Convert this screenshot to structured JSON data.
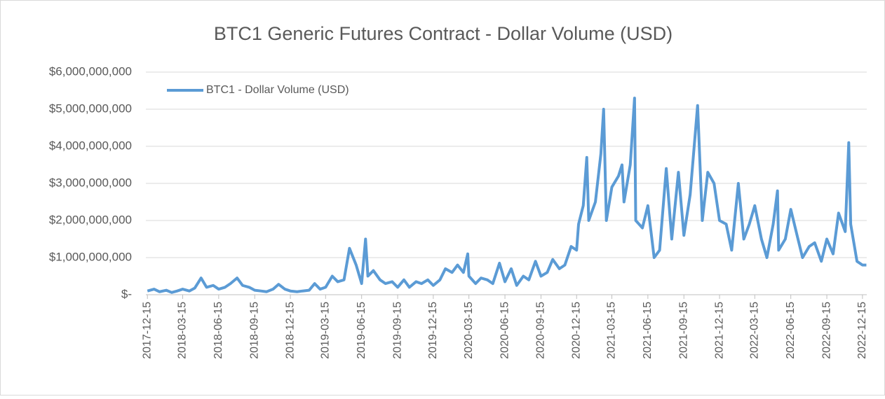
{
  "chart_data": {
    "type": "line",
    "title": "BTC1 Generic Futures Contract - Dollar Volume (USD)",
    "legend": "upper left",
    "grid": true,
    "xlim": [
      "2017-12-11",
      "2022-12-26"
    ],
    "xticks": [
      "2017-12-15",
      "2018-03-15",
      "2018-06-15",
      "2018-09-15",
      "2018-12-15",
      "2019-03-15",
      "2019-06-15",
      "2019-09-15",
      "2019-12-15",
      "2020-03-15",
      "2020-06-15",
      "2020-09-15",
      "2020-12-15",
      "2021-03-15",
      "2021-06-15",
      "2021-09-15",
      "2021-12-15",
      "2022-03-15",
      "2022-06-15",
      "2022-09-15",
      "2022-12-15"
    ],
    "ylim": [
      0,
      6000000000
    ],
    "yticks": [
      {
        "value": 0,
        "label": "$-"
      },
      {
        "value": 1000000000,
        "label": "$1,000,000,000"
      },
      {
        "value": 2000000000,
        "label": "$2,000,000,000"
      },
      {
        "value": 3000000000,
        "label": "$3,000,000,000"
      },
      {
        "value": 4000000000,
        "label": "$4,000,000,000"
      },
      {
        "value": 5000000000,
        "label": "$5,000,000,000"
      },
      {
        "value": 6000000000,
        "label": "$6,000,000,000"
      }
    ],
    "x": [
      "2017-12-15",
      "2018-01-01",
      "2018-01-15",
      "2018-02-01",
      "2018-02-15",
      "2018-03-01",
      "2018-03-15",
      "2018-04-01",
      "2018-04-15",
      "2018-05-01",
      "2018-05-15",
      "2018-06-01",
      "2018-06-15",
      "2018-07-01",
      "2018-07-15",
      "2018-08-01",
      "2018-08-15",
      "2018-09-01",
      "2018-09-15",
      "2018-10-01",
      "2018-10-15",
      "2018-11-01",
      "2018-11-15",
      "2018-12-01",
      "2018-12-15",
      "2019-01-01",
      "2019-01-15",
      "2019-02-01",
      "2019-02-15",
      "2019-03-01",
      "2019-03-15",
      "2019-04-01",
      "2019-04-15",
      "2019-05-01",
      "2019-05-15",
      "2019-06-01",
      "2019-06-15",
      "2019-06-25",
      "2019-07-01",
      "2019-07-15",
      "2019-08-01",
      "2019-08-15",
      "2019-09-01",
      "2019-09-15",
      "2019-10-01",
      "2019-10-15",
      "2019-11-01",
      "2019-11-15",
      "2019-12-01",
      "2019-12-15",
      "2020-01-01",
      "2020-01-15",
      "2020-02-01",
      "2020-02-15",
      "2020-03-01",
      "2020-03-12",
      "2020-03-15",
      "2020-04-01",
      "2020-04-15",
      "2020-05-01",
      "2020-05-15",
      "2020-06-01",
      "2020-06-15",
      "2020-07-01",
      "2020-07-15",
      "2020-08-01",
      "2020-08-15",
      "2020-09-01",
      "2020-09-15",
      "2020-10-01",
      "2020-10-15",
      "2020-11-01",
      "2020-11-15",
      "2020-12-01",
      "2020-12-15",
      "2020-12-20",
      "2021-01-01",
      "2021-01-10",
      "2021-01-15",
      "2021-02-01",
      "2021-02-15",
      "2021-02-22",
      "2021-03-01",
      "2021-03-15",
      "2021-04-01",
      "2021-04-10",
      "2021-04-15",
      "2021-05-01",
      "2021-05-12",
      "2021-05-15",
      "2021-06-01",
      "2021-06-15",
      "2021-07-01",
      "2021-07-15",
      "2021-08-01",
      "2021-08-15",
      "2021-09-01",
      "2021-09-15",
      "2021-10-01",
      "2021-10-20",
      "2021-11-01",
      "2021-11-15",
      "2021-12-01",
      "2021-12-15",
      "2022-01-01",
      "2022-01-15",
      "2022-02-01",
      "2022-02-15",
      "2022-03-01",
      "2022-03-15",
      "2022-04-01",
      "2022-04-15",
      "2022-05-01",
      "2022-05-12",
      "2022-05-15",
      "2022-06-01",
      "2022-06-15",
      "2022-07-01",
      "2022-07-15",
      "2022-08-01",
      "2022-08-15",
      "2022-09-01",
      "2022-09-15",
      "2022-10-01",
      "2022-10-15",
      "2022-11-01",
      "2022-11-10",
      "2022-11-15",
      "2022-12-01",
      "2022-12-15",
      "2022-12-25"
    ],
    "series": [
      {
        "name": "BTC1 - Dollar Volume (USD)",
        "color": "#5b9bd5",
        "values": [
          100000000,
          150000000,
          80000000,
          120000000,
          60000000,
          100000000,
          150000000,
          100000000,
          180000000,
          450000000,
          200000000,
          250000000,
          150000000,
          200000000,
          300000000,
          450000000,
          250000000,
          200000000,
          120000000,
          100000000,
          80000000,
          150000000,
          280000000,
          150000000,
          100000000,
          80000000,
          100000000,
          120000000,
          300000000,
          150000000,
          200000000,
          500000000,
          350000000,
          400000000,
          1250000000,
          800000000,
          300000000,
          1500000000,
          500000000,
          650000000,
          400000000,
          300000000,
          350000000,
          200000000,
          400000000,
          200000000,
          350000000,
          300000000,
          400000000,
          250000000,
          400000000,
          700000000,
          600000000,
          800000000,
          600000000,
          1100000000,
          500000000,
          300000000,
          450000000,
          400000000,
          300000000,
          850000000,
          350000000,
          700000000,
          250000000,
          500000000,
          400000000,
          900000000,
          500000000,
          600000000,
          950000000,
          700000000,
          800000000,
          1300000000,
          1200000000,
          1900000000,
          2400000000,
          3700000000,
          2000000000,
          2500000000,
          3800000000,
          5000000000,
          2000000000,
          2900000000,
          3200000000,
          3500000000,
          2500000000,
          3500000000,
          5300000000,
          2000000000,
          1800000000,
          2400000000,
          1000000000,
          1200000000,
          3400000000,
          1500000000,
          3300000000,
          1600000000,
          2700000000,
          5100000000,
          2000000000,
          3300000000,
          3000000000,
          2000000000,
          1900000000,
          1200000000,
          3000000000,
          1500000000,
          1900000000,
          2400000000,
          1500000000,
          1000000000,
          1900000000,
          2800000000,
          1200000000,
          1500000000,
          2300000000,
          1600000000,
          1000000000,
          1300000000,
          1400000000,
          900000000,
          1500000000,
          1100000000,
          2200000000,
          1700000000,
          4100000000,
          1900000000,
          900000000,
          800000000,
          800000000
        ]
      }
    ]
  }
}
